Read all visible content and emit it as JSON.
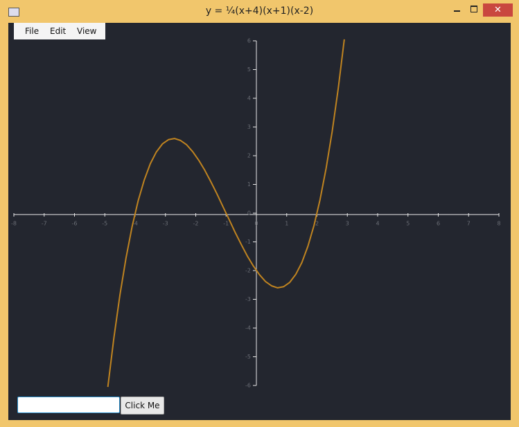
{
  "window": {
    "title": "y = ¼(x+4)(x+1)(x-2)"
  },
  "menu": [
    "File",
    "Edit",
    "View"
  ],
  "button": "Click Me",
  "chart_data": {
    "type": "line",
    "x": [
      -4.9,
      -4.7,
      -4.5,
      -4.3,
      -4.1,
      -3.9,
      -3.7,
      -3.5,
      -3.3,
      -3.1,
      -2.9,
      -2.7,
      -2.5,
      -2.3,
      -2.1,
      -1.9,
      -1.7,
      -1.5,
      -1.3,
      -1.1,
      -0.9,
      -0.7,
      -0.5,
      -0.3,
      -0.1,
      0.1,
      0.3,
      0.5,
      0.7,
      0.9,
      1.1,
      1.3,
      1.5,
      1.7,
      1.9,
      2.1,
      2.3,
      2.5,
      2.7,
      2.9
    ],
    "series": [
      {
        "color": "#c08420",
        "values": [
          -6.05,
          -4.34,
          -2.84,
          -1.56,
          -0.47,
          0.43,
          1.15,
          1.72,
          2.13,
          2.41,
          2.56,
          2.6,
          2.53,
          2.38,
          2.14,
          1.84,
          1.49,
          1.09,
          0.67,
          0.22,
          -0.22,
          -0.67,
          -1.09,
          -1.49,
          -1.84,
          -2.14,
          -2.38,
          -2.53,
          -2.6,
          -2.56,
          -2.41,
          -2.13,
          -1.72,
          -1.15,
          -0.43,
          0.47,
          1.56,
          2.84,
          4.34,
          6.05
        ]
      }
    ],
    "xlim": [
      -8,
      8
    ],
    "ylim": [
      -6,
      6
    ],
    "xticks": [
      -8,
      -7,
      -6,
      -5,
      -4,
      -3,
      -2,
      -1,
      0,
      1,
      2,
      3,
      4,
      5,
      6,
      7,
      8
    ],
    "yticks": [
      -6,
      -5,
      -4,
      -3,
      -2,
      -1,
      0,
      1,
      2,
      3,
      4,
      5,
      6
    ]
  }
}
